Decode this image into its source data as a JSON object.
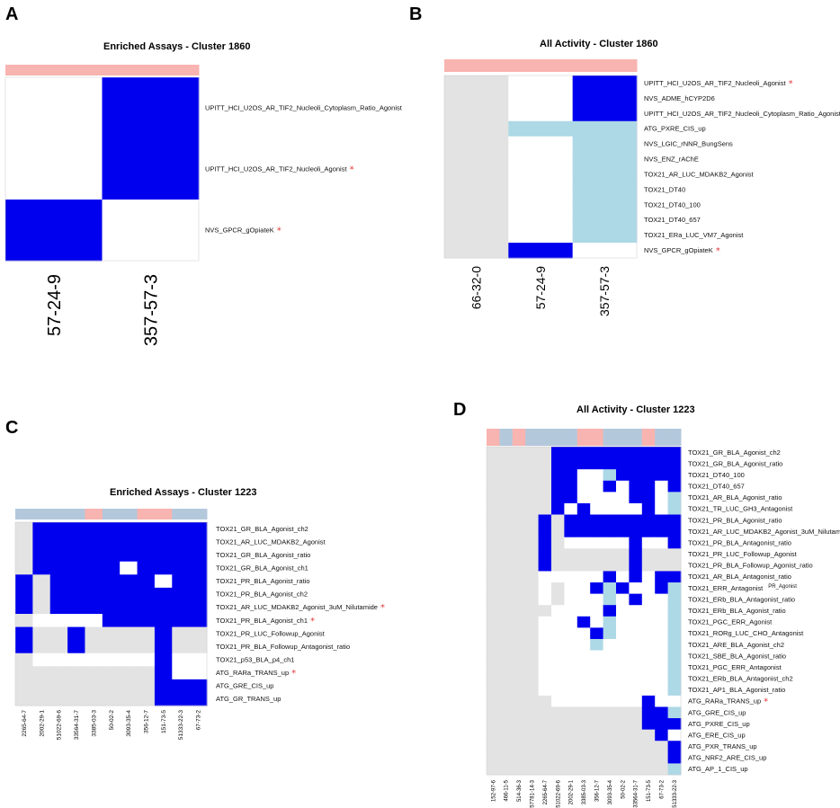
{
  "colors": {
    "blue": "#0000ee",
    "light": "#add8e6",
    "grey": "#e3e3e3",
    "white": "#ffffff",
    "pink": "#f8b4b0",
    "steel": "#b4c8dc",
    "star": "#e23a3a"
  },
  "chart_data": [
    {
      "panel": "A",
      "type": "heatmap",
      "title": "Enriched Assays - Cluster 1860",
      "columns": [
        "57-24-9",
        "357-57-3"
      ],
      "column_groups": [
        "pink",
        "pink"
      ],
      "rows": [
        {
          "label": "UPITT_HCI_U2OS_AR_TIF2_Nucleoli_Cytoplasm_Ratio_Agonist",
          "star": false,
          "cells": "WB"
        },
        {
          "label": "UPITT_HCI_U2OS_AR_TIF2_Nucleoli_Agonist",
          "star": true,
          "cells": "WB"
        },
        {
          "label": "NVS_GPCR_gOpiateK",
          "star": true,
          "cells": "BW"
        }
      ]
    },
    {
      "panel": "B",
      "type": "heatmap",
      "title": "All Activity - Cluster 1860",
      "columns": [
        "66-32-0",
        "57-24-9",
        "357-57-3"
      ],
      "column_groups": [
        "pink",
        "pink",
        "pink"
      ],
      "rows": [
        {
          "label": "UPITT_HCI_U2OS_AR_TIF2_Nucleoli_Agonist",
          "star": true,
          "cells": "GWB"
        },
        {
          "label": "NVS_ADME_hCYP2D6",
          "star": false,
          "cells": "GWB"
        },
        {
          "label": "UPITT_HCI_U2OS_AR_TIF2_Nucleoli_Cytoplasm_Ratio_Agonist",
          "star": false,
          "cells": "GWB"
        },
        {
          "label": "ATG_PXRE_CIS_up",
          "star": false,
          "cells": "GLL"
        },
        {
          "label": "NVS_LGIC_rNNR_BungSens",
          "star": false,
          "cells": "GWL"
        },
        {
          "label": "NVS_ENZ_rAChE",
          "star": false,
          "cells": "GWL"
        },
        {
          "label": "TOX21_AR_LUC_MDAKB2_Agonist",
          "star": false,
          "cells": "GWL"
        },
        {
          "label": "TOX21_DT40",
          "star": false,
          "cells": "GWL"
        },
        {
          "label": "TOX21_DT40_100",
          "star": false,
          "cells": "GWL"
        },
        {
          "label": "TOX21_DT40_657",
          "star": false,
          "cells": "GWL"
        },
        {
          "label": "TOX21_ERa_LUC_VM7_Agonist",
          "star": false,
          "cells": "GWL"
        },
        {
          "label": "NVS_GPCR_gOpiateK",
          "star": true,
          "cells": "GBW"
        }
      ]
    },
    {
      "panel": "C",
      "type": "heatmap",
      "title": "Enriched Assays - Cluster 1223",
      "columns": [
        "2265-64-7",
        "2002-29-1",
        "51022-69-6",
        "33564-31-7",
        "3385-03-3",
        "50-02-2",
        "3093-35-4",
        "356-12-7",
        "151-73-5",
        "51333-22-3",
        "67-73-2"
      ],
      "column_groups": [
        "steel",
        "steel",
        "steel",
        "steel",
        "pink",
        "steel",
        "steel",
        "pink",
        "pink",
        "steel",
        "steel"
      ],
      "rows": [
        {
          "label": "TOX21_GR_BLA_Agonist_ch2",
          "star": false,
          "cells": "GBBBBBBBBBB"
        },
        {
          "label": "TOX21_AR_LUC_MDAKB2_Agonist",
          "star": false,
          "cells": "GBBBBBBBBBB"
        },
        {
          "label": "TOX21_GR_BLA_Agonist_ratio",
          "star": false,
          "cells": "GBBBBBBBBBB"
        },
        {
          "label": "TOX21_GR_BLA_Agonist_ch1",
          "star": false,
          "cells": "GBBBBBWBBBB"
        },
        {
          "label": "TOX21_PR_BLA_Agonist_ratio",
          "star": false,
          "cells": "BGBBBBBBWBB"
        },
        {
          "label": "TOX21_PR_BLA_Agonist_ch2",
          "star": false,
          "cells": "BGBBBBBBBBB"
        },
        {
          "label": "TOX21_AR_LUC_MDAKB2_Agonist_3uM_Nilutamide",
          "star": true,
          "cells": "BGBBBBBBBBB"
        },
        {
          "label": "TOX21_PR_BLA_Agonist_ch1",
          "star": true,
          "cells": "GWWWWBBBBBB"
        },
        {
          "label": "TOX21_PR_LUC_Followup_Agonist",
          "star": false,
          "cells": "BGGBGGGGBGG"
        },
        {
          "label": "TOX21_PR_BLA_Followup_Antagonist_ratio",
          "star": false,
          "cells": "BGGBGGGGBGG"
        },
        {
          "label": "TOX21_p53_BLA_p4_ch1",
          "star": false,
          "cells": "GWWWWWWWBWW"
        },
        {
          "label": "ATG_RARa_TRANS_up",
          "star": true,
          "cells": "GGGGGGGGBWW"
        },
        {
          "label": "ATG_GRE_CIS_up",
          "star": false,
          "cells": "GGGGGGGGBBB"
        },
        {
          "label": "ATG_GR_TRANS_up",
          "star": false,
          "cells": "GGGGGGGGBBB"
        }
      ]
    },
    {
      "panel": "D",
      "type": "heatmap",
      "title": "All Activity - Cluster 1223",
      "columns": [
        "152-97-6",
        "466-11-5",
        "514-36-3",
        "57781-14-3",
        "2265-64-7",
        "51022-69-6",
        "2002-29-1",
        "3385-03-3",
        "356-12-7",
        "3093-35-4",
        "50-02-2",
        "33564-31-7",
        "151-73-5",
        "67-73-2",
        "51333-22-3"
      ],
      "column_groups": [
        "pink",
        "steel",
        "pink",
        "steel",
        "steel",
        "steel",
        "steel",
        "pink",
        "pink",
        "steel",
        "steel",
        "steel",
        "pink",
        "steel",
        "steel"
      ],
      "rows": [
        {
          "label": "TOX21_GR_BLA_Agonist_ch2",
          "star": false,
          "cells": "GGGGGBBBBBBBBBB"
        },
        {
          "label": "TOX21_GR_BLA_Agonist_ratio",
          "star": false,
          "cells": "GGGGGBBBBBBBBBB"
        },
        {
          "label": "TOX21_DT40_100",
          "star": false,
          "cells": "GGGGGBBWWLBBBBB"
        },
        {
          "label": "TOX21_DT40_657",
          "star": false,
          "cells": "GGGGGBBWWBWBBWB"
        },
        {
          "label": "TOX21_AR_BLA_Agonist_ratio",
          "star": false,
          "cells": "GGGGGBBWWWWBBWL"
        },
        {
          "label": "TOX21_TR_LUC_GH3_Antagonist",
          "star": false,
          "cells": "GGGGGBWBWWWWBWL"
        },
        {
          "label": "TOX21_PR_BLA_Agonist_ratio",
          "star": false,
          "cells": "GGGGBGBBBBBBBBB"
        },
        {
          "label": "TOX21_AR_LUC_MDAKB2_Agonist_3uM_Nilutamide",
          "star": true,
          "cells": "GGGGBGBBBBBBBBB"
        },
        {
          "label": "TOX21_PR_BLA_Antagonist_ratio",
          "star": false,
          "cells": "GGGGBGWWWWWBWWB"
        },
        {
          "label": "TOX21_PR_LUC_Followup_Agonist",
          "star": false,
          "cells": "GGGGBGGGGGGBGGG"
        },
        {
          "label": "TOX21_PR_BLA_Followup_Agonist_ratio",
          "star": false,
          "cells": "GGGGBGGGGGGBGGG"
        },
        {
          "label": "TOX21_AR_BLA_Antagonist_ratio",
          "star": false,
          "cells": "GGGGWWWWWBWBWBB"
        },
        {
          "label": "TOX21_ERR_Antagonist",
          "star": false,
          "note": "PR_Agonist",
          "cells": "GGGGWGWWBLBWWBL"
        },
        {
          "label": "TOX21_ERb_BLA_Antagonist_ratio",
          "star": false,
          "cells": "GGGGWGWWWLWBWWL"
        },
        {
          "label": "TOX21_ERb_BLA_Agonist_ratio",
          "star": false,
          "cells": "GGGGGWWWWBWWWWL"
        },
        {
          "label": "TOX21_PGC_ERR_Agonist",
          "star": false,
          "cells": "GGGGWWWBWLWWWWL"
        },
        {
          "label": "TOX21_RORg_LUC_CHO_Antagonist",
          "star": false,
          "cells": "GGGGWWWWBLWWWWL"
        },
        {
          "label": "TOX21_ARE_BLA_Agonist_ch2",
          "star": false,
          "cells": "GGGGWWWWLWWWWWL"
        },
        {
          "label": "TOX21_SBE_BLA_Agonist_ratio",
          "star": false,
          "cells": "GGGGWWWWWWWWWWL"
        },
        {
          "label": "TOX21_PGC_ERR_Antagonist",
          "star": false,
          "cells": "GGGGWWWWWWWWWWL"
        },
        {
          "label": "TOX21_ERb_BLA_Antagonist_ch2",
          "star": false,
          "cells": "GGGGWWWWWWWWWWL"
        },
        {
          "label": "TOX21_AP1_BLA_Agonist_ratio",
          "star": false,
          "cells": "GGGGWWWWWWWWWWL"
        },
        {
          "label": "ATG_RARa_TRANS_up",
          "star": true,
          "cells": "GGGGGWWWWWWWBWW"
        },
        {
          "label": "ATG_GRE_CIS_up",
          "star": false,
          "cells": "GGGGGGGGGGGGBBL"
        },
        {
          "label": "ATG_PXRE_CIS_up",
          "star": false,
          "cells": "GGGGGGGGGGGGBBB"
        },
        {
          "label": "ATG_ERE_CIS_up",
          "star": false,
          "cells": "GGGGGGGGGGGGGBW"
        },
        {
          "label": "ATG_PXR_TRANS_up",
          "star": false,
          "cells": "GGGGGGGGGGGGGGB"
        },
        {
          "label": "ATG_NRF2_ARE_CIS_up",
          "star": false,
          "cells": "GGGGGGGGGGGGGGB"
        },
        {
          "label": "ATG_AP_1_CIS_up",
          "star": false,
          "cells": "GGGGGGGGGGGGGGL"
        }
      ]
    }
  ]
}
